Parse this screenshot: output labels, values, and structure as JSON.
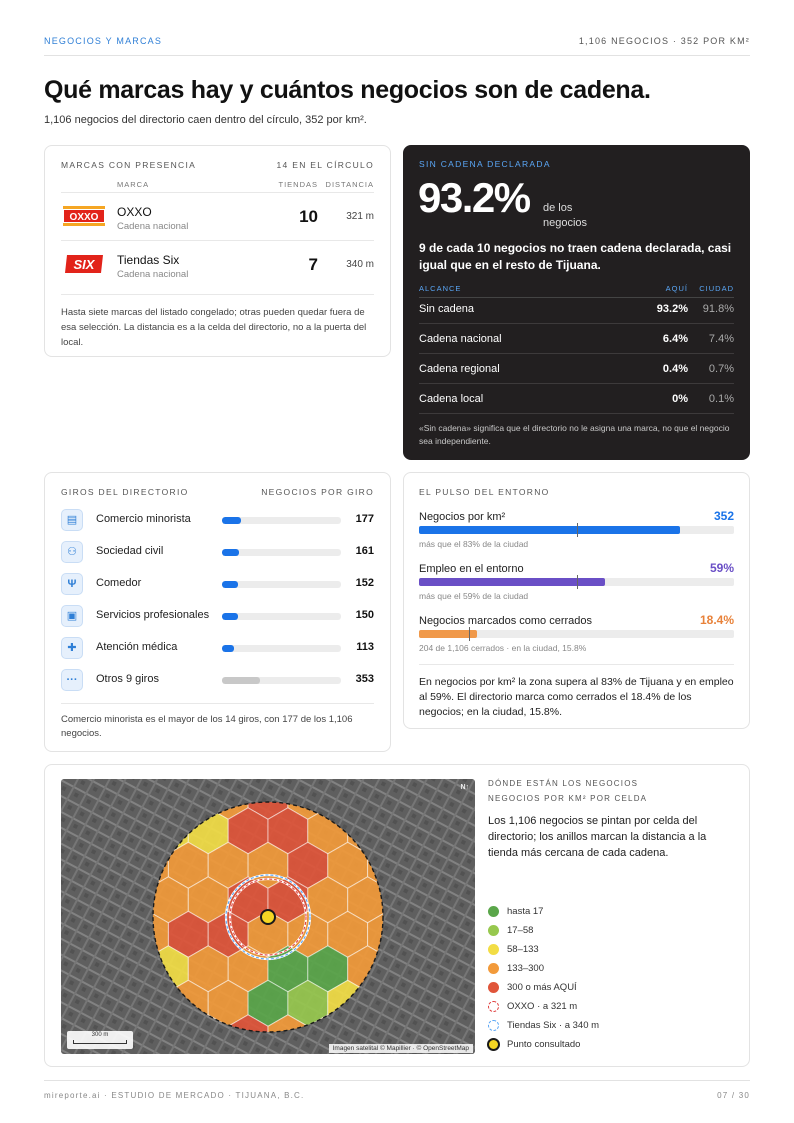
{
  "header": {
    "section": "NEGOCIOS Y MARCAS",
    "summary": "1,106 NEGOCIOS · 352 POR KM²"
  },
  "title": "Qué marcas hay y cuántos negocios son de cadena.",
  "subtitle": "1,106 negocios del directorio caen dentro del círculo, 352 por km².",
  "brands": {
    "label": "MARCAS CON PRESENCIA",
    "count_label": "14 EN EL CÍRCULO",
    "col_brand": "MARCA",
    "col_stores": "TIENDAS",
    "col_distance": "DISTANCIA",
    "items": [
      {
        "name": "OXXO",
        "type": "Cadena nacional",
        "stores": "10",
        "distance": "321 m",
        "logo": "oxxo-logo",
        "logo_text": "OXXO"
      },
      {
        "name": "Tiendas Six",
        "type": "Cadena nacional",
        "stores": "7",
        "distance": "340 m",
        "logo": "six-logo",
        "logo_text": "SIX"
      }
    ],
    "note": "Hasta siete marcas del listado congelado; otras pueden quedar fuera de esa selección. La distancia es a la celda del directorio, no a la puerta del local."
  },
  "nochain": {
    "label": "SIN CADENA DECLARADA",
    "big": "93.2%",
    "big_suffix": "de los negocios",
    "desc": "9 de cada 10 negocios no traen cadena declarada, casi igual que en el resto de Tijuana.",
    "col_reach": "ALCANCE",
    "col_here": "AQUÍ",
    "col_city": "CIUDAD",
    "rows": [
      {
        "label": "Sin cadena",
        "here": "93.2%",
        "city": "91.8%"
      },
      {
        "label": "Cadena nacional",
        "here": "6.4%",
        "city": "7.4%"
      },
      {
        "label": "Cadena regional",
        "here": "0.4%",
        "city": "0.7%"
      },
      {
        "label": "Cadena local",
        "here": "0%",
        "city": "0.1%"
      }
    ],
    "note": "«Sin cadena» significa que el directorio no le asigna una marca, no que el negocio sea independiente."
  },
  "giros": {
    "label": "GIROS DEL DIRECTORIO",
    "right_label": "NEGOCIOS POR GIRO",
    "max": 1106,
    "items": [
      {
        "icon": "store-icon",
        "glyph": "▤",
        "label": "Comercio minorista",
        "value": 177
      },
      {
        "icon": "people-icon",
        "glyph": "⚇",
        "label": "Sociedad civil",
        "value": 161
      },
      {
        "icon": "fork-knife-icon",
        "glyph": "Ψ",
        "label": "Comedor",
        "value": 152
      },
      {
        "icon": "briefcase-icon",
        "glyph": "▣",
        "label": "Servicios profesionales",
        "value": 150
      },
      {
        "icon": "medical-icon",
        "glyph": "✚",
        "label": "Atención médica",
        "value": 113
      },
      {
        "icon": "more-icon",
        "glyph": "···",
        "label": "Otros 9 giros",
        "value": 353
      }
    ],
    "note": "Comercio minorista es el mayor de los 14 giros, con 177 de los 1,106 negocios."
  },
  "pulse": {
    "label": "EL PULSO DEL ENTORNO",
    "metrics": [
      {
        "label": "Negocios por km²",
        "value": "352",
        "fill": 0.83,
        "marker": 0.5,
        "color": "#1a73e8",
        "sub": "más que el 83% de la ciudad"
      },
      {
        "label": "Empleo en el entorno",
        "value": "59%",
        "fill": 0.59,
        "marker": 0.5,
        "color": "#6a4fc6",
        "sub": "más que el 59% de la ciudad"
      },
      {
        "label": "Negocios marcados como cerrados",
        "value": "18.4%",
        "fill": 0.184,
        "marker": 0.158,
        "color": "#f0994a",
        "sub": "204 de 1,106 cerrados · en la ciudad, 15.8%"
      }
    ],
    "note": "En negocios por km² la zona supera al 83% de Tijuana y en empleo al 59%. El directorio marca como cerrados el 18.4% de los negocios; en la ciudad, 15.8%."
  },
  "map": {
    "label_1": "DÓNDE ESTÁN LOS NEGOCIOS",
    "label_2": "NEGOCIOS POR KM² POR CELDA",
    "desc": "Los 1,106 negocios se pintan por celda del directorio; los anillos marcan la distancia a la tienda más cercana de cada cadena.",
    "attribution": "Imagen satelital © Mapillier · © OpenStreetMap",
    "scale": "300 m",
    "compass": "N↑",
    "legend": [
      {
        "label": "hasta 17",
        "color": "#5aa64a",
        "kind": "dot"
      },
      {
        "label": "17–58",
        "color": "#97c84e",
        "kind": "dot"
      },
      {
        "label": "58–133",
        "color": "#f2dd45",
        "kind": "dot"
      },
      {
        "label": "133–300",
        "color": "#f29a3a",
        "kind": "dot"
      },
      {
        "label": "300 o más AQUÍ",
        "color": "#e0553a",
        "kind": "dot"
      },
      {
        "label": "OXXO · a 321 m",
        "color": "#e04040",
        "kind": "ring"
      },
      {
        "label": "Tiendas Six · a 340 m",
        "color": "#5aa6f5",
        "kind": "ring"
      },
      {
        "label": "Punto consultado",
        "color": "#f5d623",
        "kind": "point"
      }
    ]
  },
  "footer": {
    "left": "mireporte.ai · ESTUDIO DE MERCADO · TIJUANA, B.C.",
    "right": "07 / 30"
  }
}
